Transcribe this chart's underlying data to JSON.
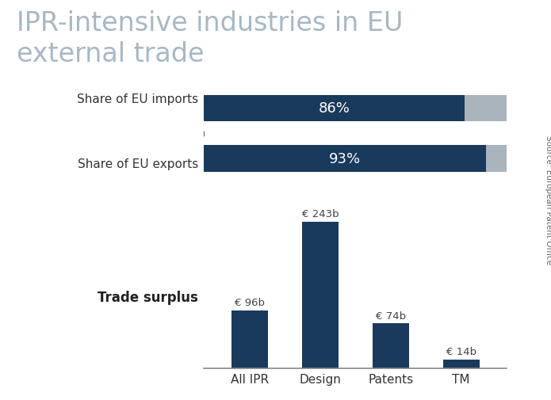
{
  "title_line1": "IPR-intensive industries in EU",
  "title_line2": "external trade",
  "title_color": "#a8b8c4",
  "title_fontsize": 24,
  "background_color": "#ffffff",
  "bar_dark": "#1a3a5c",
  "bar_gray": "#aab4bc",
  "horizontal_bars": [
    {
      "label": "Share of EU imports",
      "value": 86,
      "text": "86%"
    },
    {
      "label": "Share of EU exports",
      "value": 93,
      "text": "93%"
    }
  ],
  "vertical_bars": [
    {
      "label": "All IPR",
      "value": 96,
      "annotation": "€ 96b"
    },
    {
      "label": "Design",
      "value": 243,
      "annotation": "€ 243b"
    },
    {
      "label": "Patents",
      "value": 74,
      "annotation": "€ 74b"
    },
    {
      "label": "TM",
      "value": 14,
      "annotation": "€ 14b"
    }
  ],
  "trade_surplus_label": "Trade surplus",
  "source_text": "Source: European Patent Office",
  "hbar_label_fontsize": 11,
  "vbar_label_fontsize": 11,
  "annotation_fontsize": 9.5,
  "trade_surplus_fontsize": 12,
  "pct_fontsize": 13
}
